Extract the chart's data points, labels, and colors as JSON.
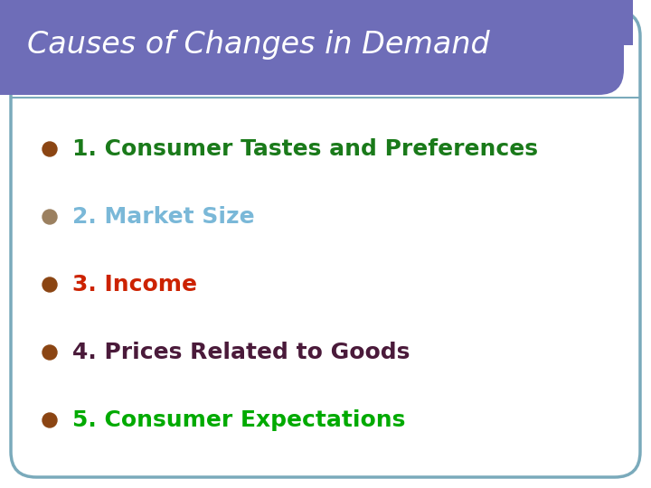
{
  "title": "Causes of Changes in Demand",
  "title_bg_color": "#6e6db8",
  "title_text_color": "#ffffff",
  "bg_color": "#ffffff",
  "border_color": "#7aaabb",
  "items": [
    {
      "text": "1. Consumer Tastes and Preferences",
      "color": "#1a7a1a",
      "bullet_color": "#8b4513"
    },
    {
      "text": "2. Market Size",
      "color": "#7ab8d8",
      "bullet_color": "#9b8060"
    },
    {
      "text": "3. Income",
      "color": "#cc2200",
      "bullet_color": "#8b4513"
    },
    {
      "text": "4. Prices Related to Goods",
      "color": "#4a1a3a",
      "bullet_color": "#8b4513"
    },
    {
      "text": "5. Consumer Expectations",
      "color": "#00aa00",
      "bullet_color": "#8b4513"
    }
  ],
  "fig_width": 7.2,
  "fig_height": 5.4,
  "dpi": 100
}
